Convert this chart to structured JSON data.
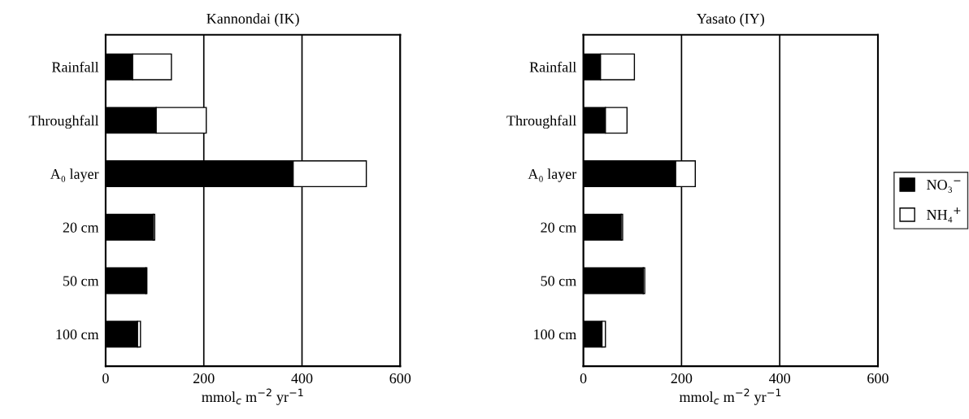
{
  "chart_data": [
    {
      "type": "bar",
      "orientation": "horizontal",
      "stacked": true,
      "title": "Kannondai (IK)",
      "xlabel": "mmol$_{c}$ m$^{−2}$ yr$^{−1}$",
      "categories": [
        "Rainfall",
        "Throughfall",
        "A₀ layer",
        "20 cm",
        "50 cm",
        "100 cm"
      ],
      "series": [
        {
          "color": "#000000",
          "values": [
            55,
            103,
            382,
            97,
            82,
            65
          ]
        },
        {
          "color": "#ffffff",
          "values": [
            79,
            102,
            149,
            3,
            2,
            6
          ]
        }
      ],
      "xlim": [
        0,
        600
      ],
      "xticks": [
        0,
        200,
        400,
        600
      ],
      "grid": "x",
      "legend": false
    },
    {
      "type": "bar",
      "orientation": "horizontal",
      "stacked": true,
      "title": "Yasato (IY)",
      "xlabel": "mmol$_{c}$ m$^{−2}$ yr$^{−1}$",
      "categories": [
        "Rainfall",
        "Throughfall",
        "A₀ layer",
        "20 cm",
        "50 cm",
        "100 cm"
      ],
      "series": [
        {
          "name": "NO₃$^{−}$",
          "color": "#000000",
          "values": [
            35,
            45,
            188,
            77,
            122,
            38
          ]
        },
        {
          "name": "NH₄$^{+}$",
          "color": "#ffffff",
          "values": [
            69,
            44,
            40,
            3,
            3,
            7
          ]
        }
      ],
      "xlim": [
        0,
        600
      ],
      "xticks": [
        0,
        200,
        400,
        600
      ],
      "grid": "x",
      "legend": "right"
    }
  ]
}
